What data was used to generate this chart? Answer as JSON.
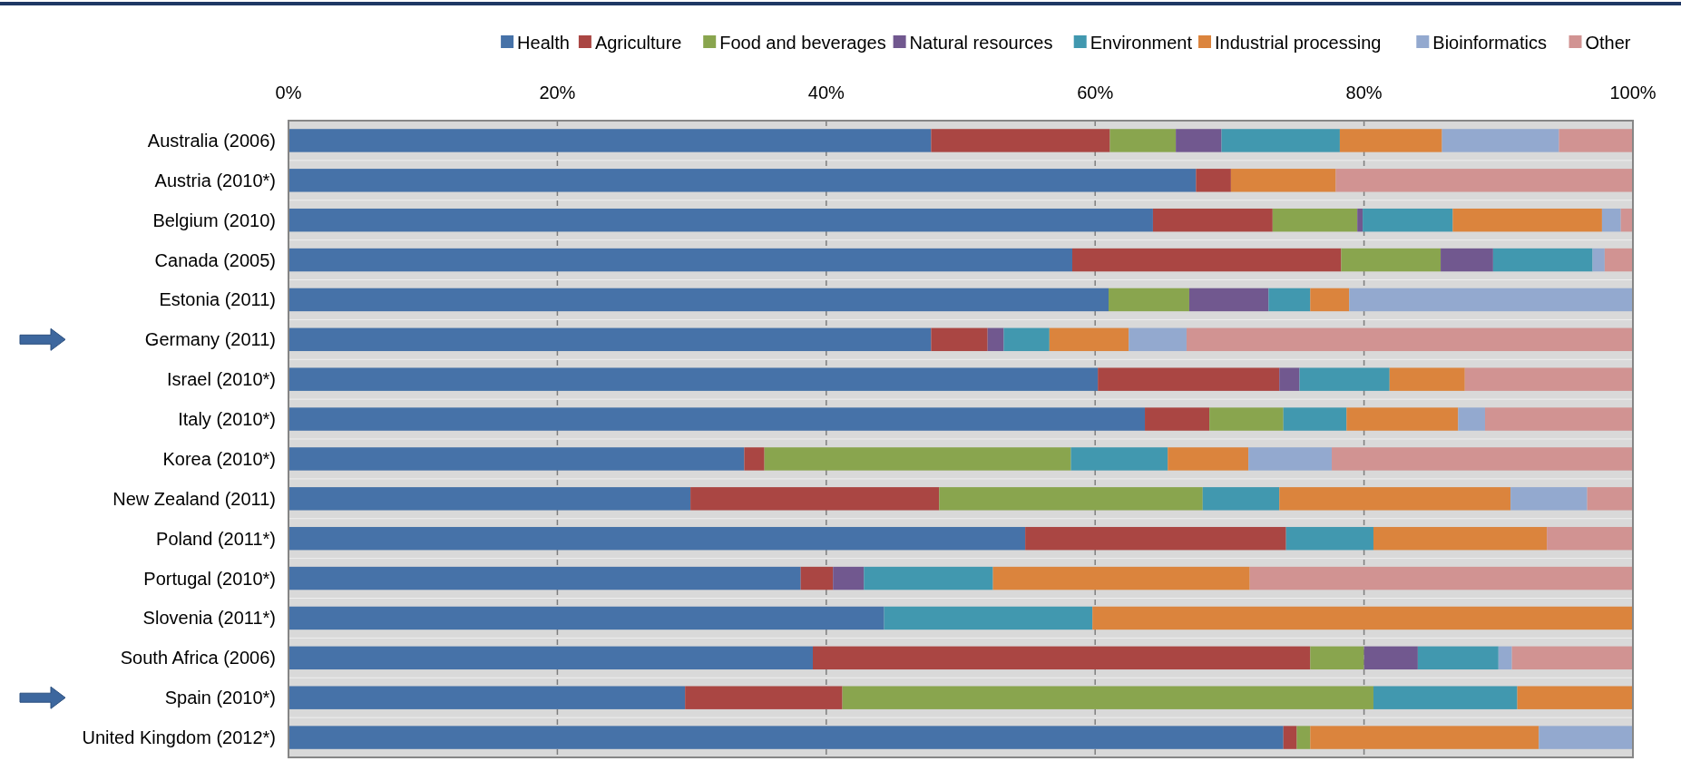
{
  "chart_data": {
    "type": "bar",
    "orientation": "horizontal",
    "stacked": true,
    "legend": "top",
    "grid": "x",
    "categories": [
      "Australia (2006)",
      "Austria (2010*)",
      "Belgium (2010)",
      "Canada (2005)",
      "Estonia (2011)",
      "Germany (2011)",
      "Israel (2010*)",
      "Italy (2010*)",
      "Korea (2010*)",
      "New Zealand (2011)",
      "Poland (2011*)",
      "Portugal (2010*)",
      "Slovenia (2011*)",
      "South Africa (2006)",
      "Spain (2010*)",
      "United Kingdom (2012*)"
    ],
    "xlim": [
      0,
      100
    ],
    "xticks": [
      {
        "value": 0,
        "label": "0%"
      },
      {
        "value": 20,
        "label": "20%"
      },
      {
        "value": 40,
        "label": "40%"
      },
      {
        "value": 60,
        "label": "60%"
      },
      {
        "value": 80,
        "label": "80%"
      },
      {
        "value": 100,
        "label": "100%"
      }
    ],
    "series": [
      {
        "name": "Health",
        "color": "#4672a8",
        "values": [
          47.8,
          67.5,
          64.3,
          58.3,
          61.0,
          47.8,
          60.2,
          63.7,
          33.9,
          29.9,
          54.8,
          38.1,
          44.3,
          39.0,
          29.5,
          74.0
        ]
      },
      {
        "name": "Agriculture",
        "color": "#aa4643",
        "values": [
          13.3,
          2.6,
          8.9,
          20.0,
          0,
          4.2,
          13.5,
          4.8,
          1.5,
          18.5,
          19.4,
          2.4,
          0,
          37.0,
          11.7,
          1.0
        ]
      },
      {
        "name": "Food and beverages",
        "color": "#89a54e",
        "values": [
          4.9,
          0,
          6.3,
          7.4,
          6.0,
          0,
          0,
          5.5,
          22.8,
          19.6,
          0,
          0,
          0,
          4.0,
          39.5,
          1.0
        ]
      },
      {
        "name": "Natural resources",
        "color": "#71588f",
        "values": [
          3.4,
          0,
          0.4,
          3.9,
          5.9,
          1.2,
          1.5,
          0,
          0,
          0,
          0,
          2.3,
          0,
          4.0,
          0,
          0
        ]
      },
      {
        "name": "Environment",
        "color": "#4198af",
        "values": [
          8.8,
          0,
          6.7,
          7.4,
          3.1,
          3.4,
          6.7,
          4.7,
          7.2,
          5.7,
          6.5,
          9.6,
          15.5,
          6.0,
          10.7,
          0
        ]
      },
      {
        "name": "Industrial processing",
        "color": "#db843d",
        "values": [
          7.6,
          7.8,
          11.1,
          0,
          2.9,
          5.9,
          5.6,
          8.3,
          6.0,
          17.2,
          12.9,
          19.1,
          40.2,
          0,
          8.6,
          17.0
        ]
      },
      {
        "name": "Bioinformatics",
        "color": "#93a9cf",
        "values": [
          8.7,
          0,
          1.4,
          0.9,
          21.1,
          4.3,
          0,
          2.0,
          6.2,
          5.7,
          0,
          0,
          0,
          1.0,
          0,
          7.0
        ]
      },
      {
        "name": "Other",
        "color": "#d19392",
        "values": [
          5.5,
          22.1,
          0.9,
          2.1,
          0,
          33.2,
          12.5,
          11.0,
          22.4,
          3.4,
          6.4,
          28.5,
          0,
          9.0,
          0,
          0
        ]
      }
    ]
  }
}
